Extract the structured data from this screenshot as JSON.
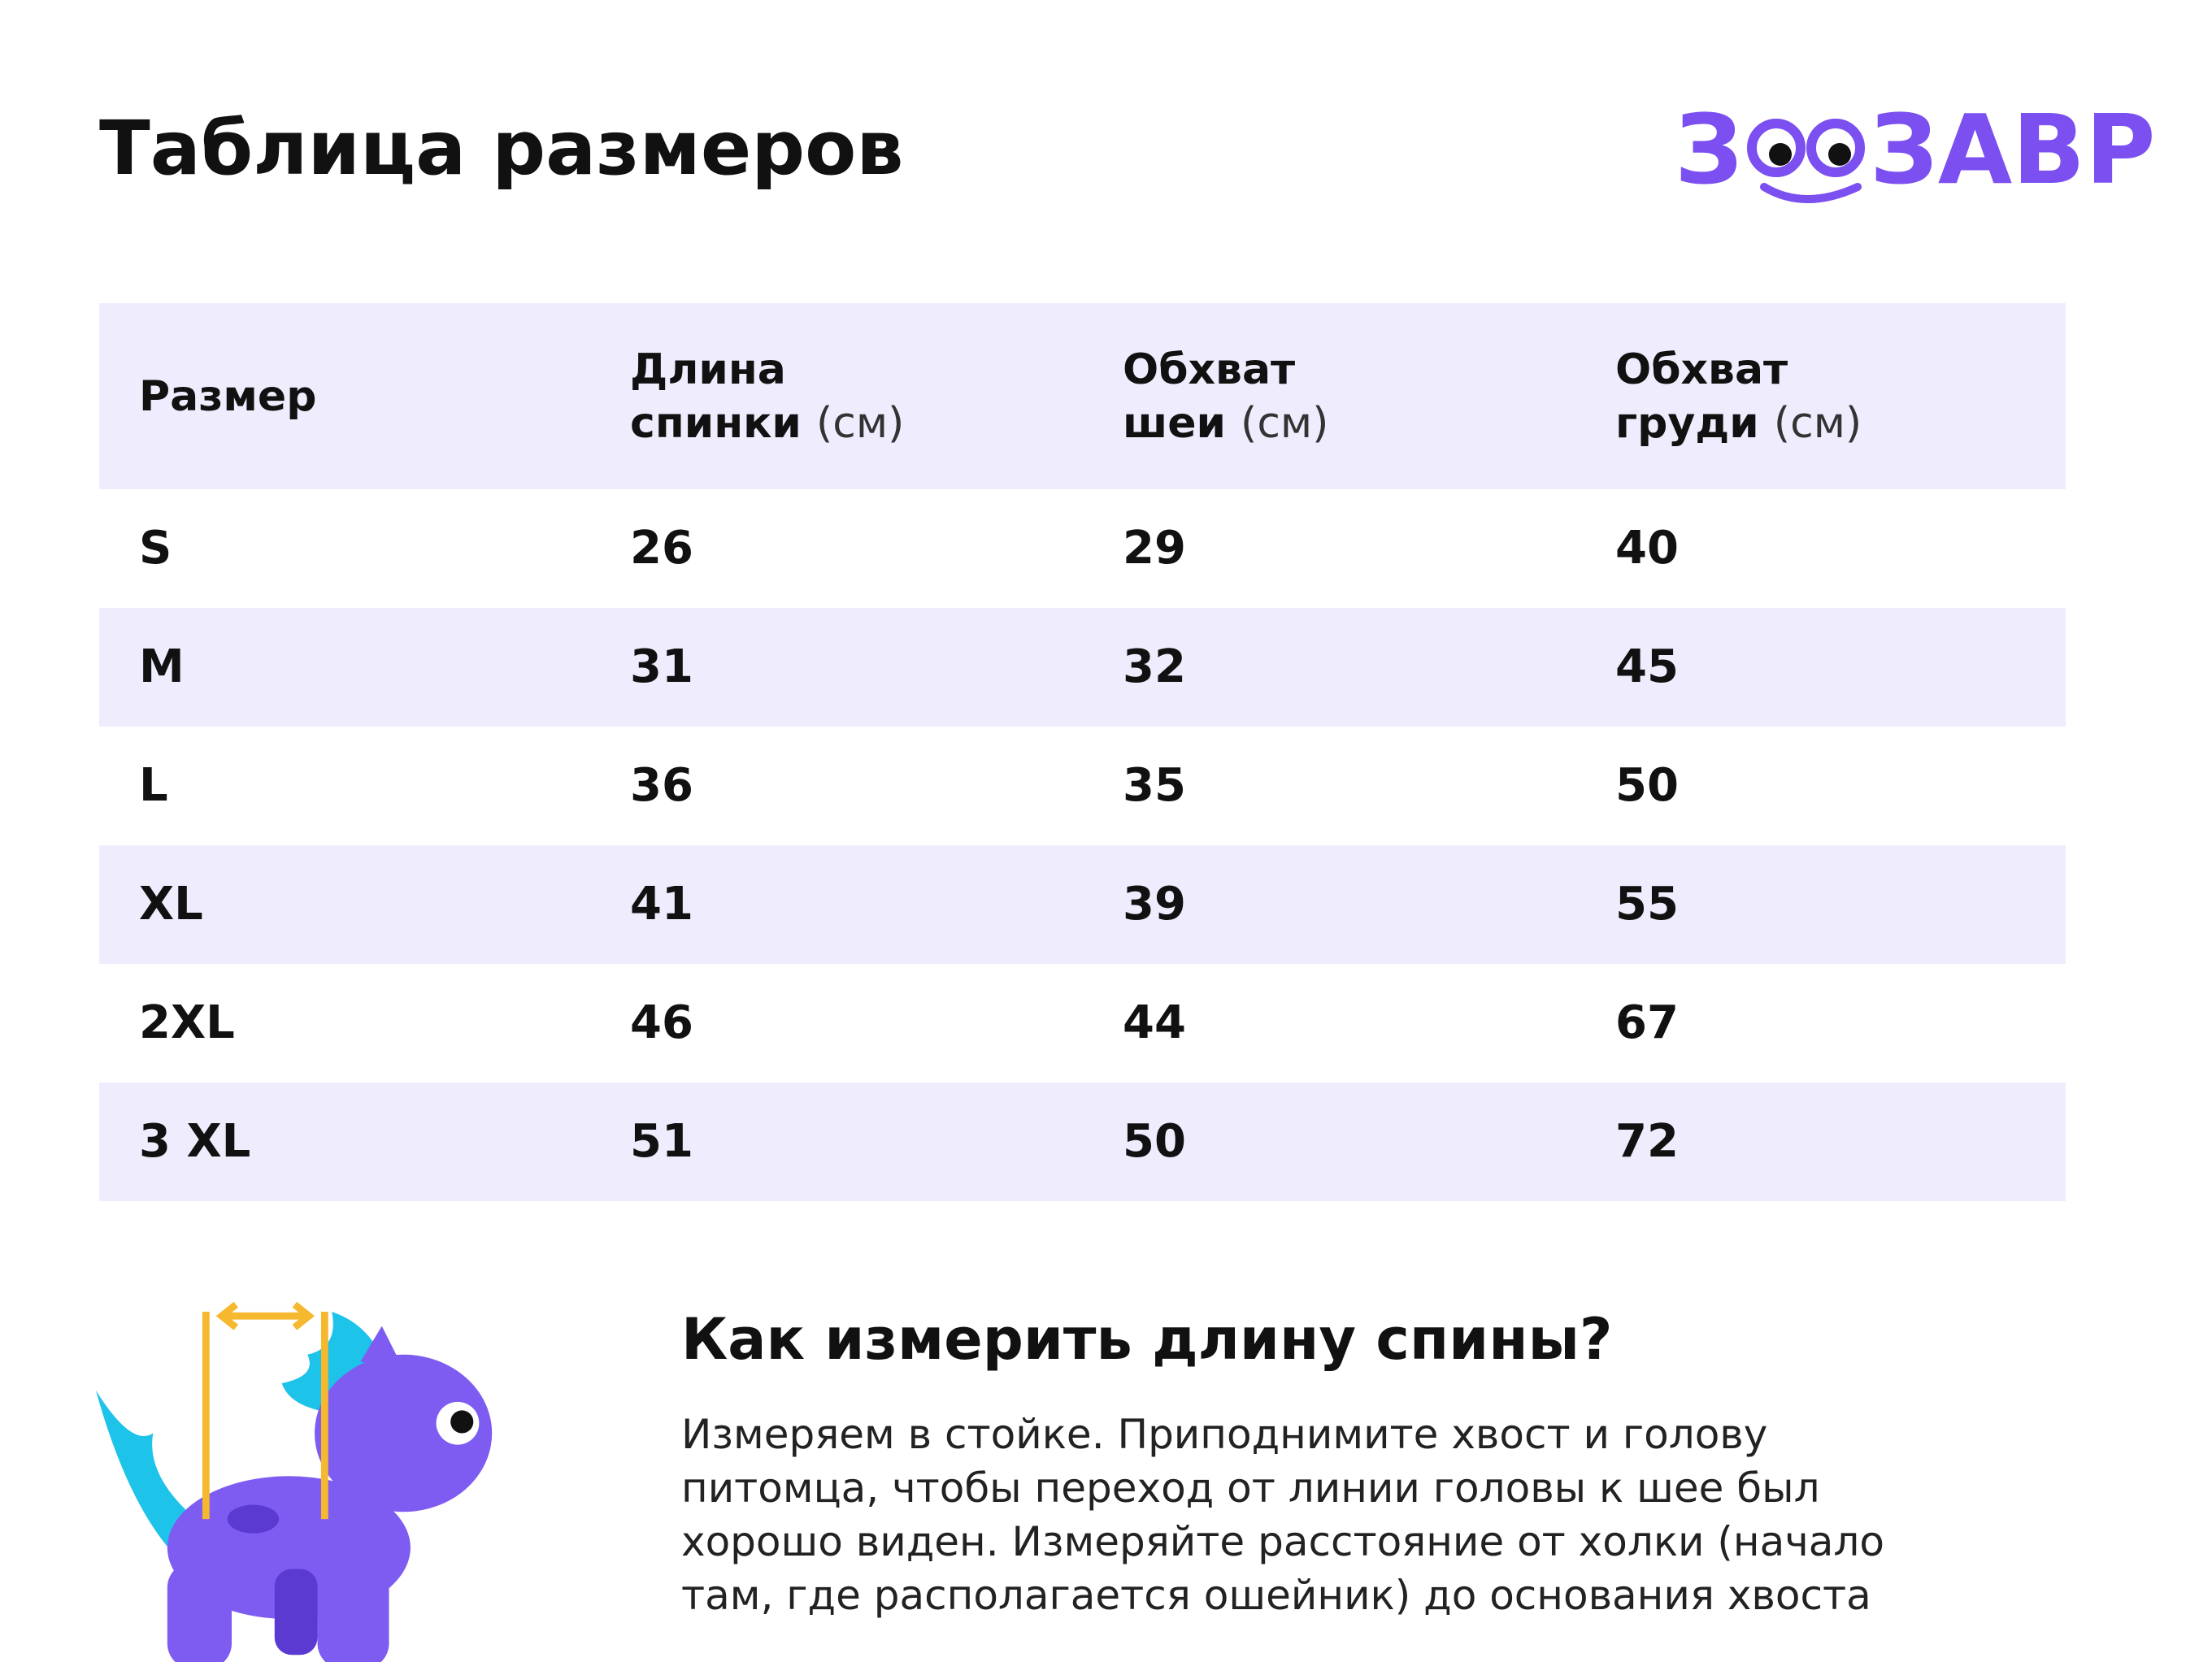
{
  "header": {
    "title": "Таблица размеров",
    "logo": {
      "left": "З",
      "right": "ЗАВР"
    }
  },
  "table": {
    "columns": [
      {
        "lines": [
          "Размер"
        ]
      },
      {
        "lines": [
          "Длина",
          "спинки"
        ],
        "unit": "(см)"
      },
      {
        "lines": [
          "Обхват",
          "шеи"
        ],
        "unit": "(см)"
      },
      {
        "lines": [
          "Обхват",
          "груди"
        ],
        "unit": "(см)"
      }
    ],
    "rows": [
      [
        "S",
        "26",
        "29",
        "40"
      ],
      [
        "M",
        "31",
        "32",
        "45"
      ],
      [
        "L",
        "36",
        "35",
        "50"
      ],
      [
        "XL",
        "41",
        "39",
        "55"
      ],
      [
        "2XL",
        "46",
        "44",
        "67"
      ],
      [
        "3 XL",
        "51",
        "50",
        "72"
      ]
    ]
  },
  "howto": {
    "title": "Как измерить длину спины?",
    "text": "Измеряем в стойке. Приподнимите хвост и голову питомца, чтобы переход от линии головы к шее был хорошо виден. Измеряйте расстояние от холки (начало там, где располагается ошейник) до основания хвоста"
  }
}
